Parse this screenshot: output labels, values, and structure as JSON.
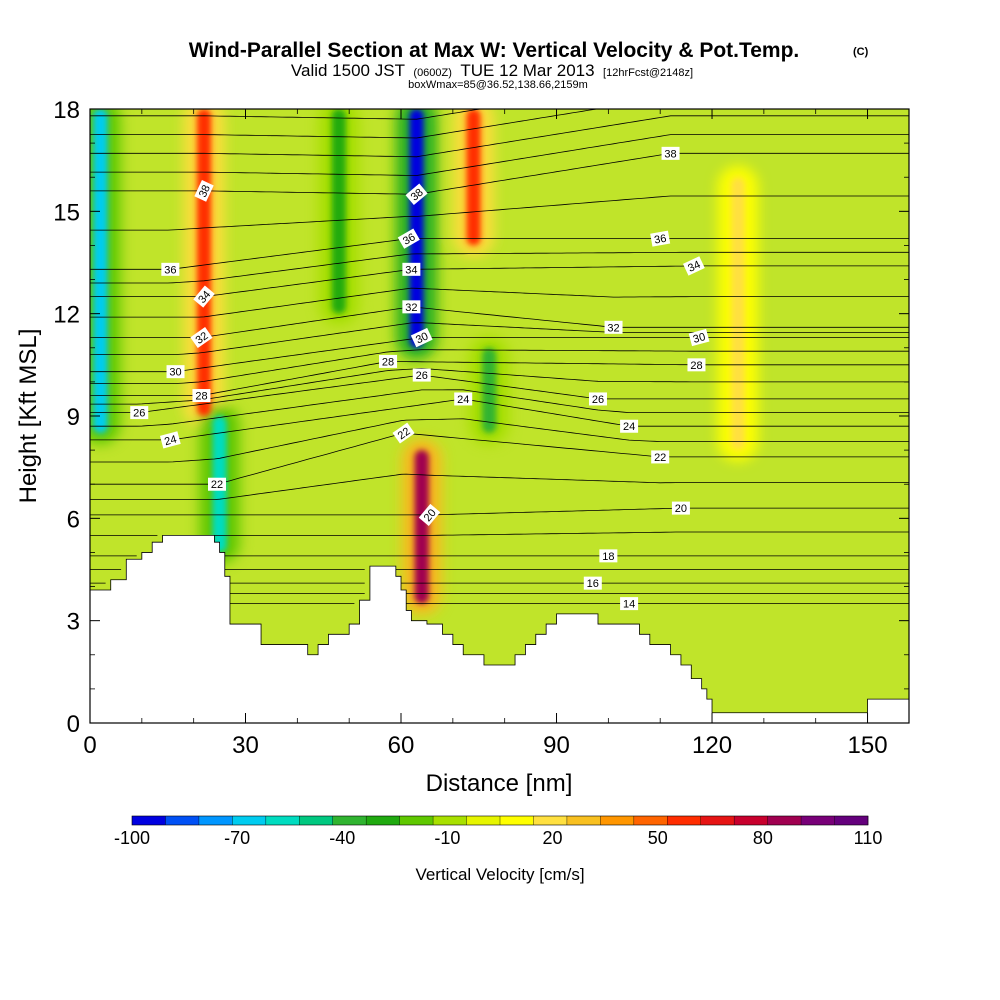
{
  "title": {
    "main": "Wind-Parallel Section at Max W: Vertical Velocity & Pot.Temp.",
    "copyright": "(C)",
    "valid_prefix": "Valid 1500 JST",
    "valid_utc": "(0600Z)",
    "valid_date": "TUE 12 Mar 2013",
    "forecast": "[12hrFcst@2148z]",
    "box_info": "boxWmax=85@36.52,138.66,2159m"
  },
  "chart_data": {
    "type": "heatmap",
    "xlabel": "Distance [nm]",
    "ylabel": "Height [Kft MSL]",
    "xlim": [
      0,
      158
    ],
    "ylim": [
      0,
      18
    ],
    "x_ticks": [
      0,
      30,
      60,
      90,
      120,
      150
    ],
    "y_ticks": [
      0,
      3,
      6,
      9,
      12,
      15,
      18
    ],
    "grid": false,
    "colorbar": {
      "label": "Vertical Velocity [cm/s]",
      "placement": "bottom",
      "tick_labels": [
        "-100",
        "-70",
        "-40",
        "-10",
        "20",
        "50",
        "80",
        "110"
      ],
      "tick_values": [
        -100,
        -70,
        -40,
        -10,
        20,
        50,
        80,
        110
      ],
      "colors": [
        "#0000e0",
        "#0050f5",
        "#0096ff",
        "#00ccf0",
        "#00dcc0",
        "#00c880",
        "#30b430",
        "#20aa10",
        "#5fc800",
        "#a8e000",
        "#e6f500",
        "#ffff00",
        "#ffe040",
        "#f8c020",
        "#ff9600",
        "#ff6400",
        "#ff2d00",
        "#e61414",
        "#c8002d",
        "#a00050",
        "#780078",
        "#64007c"
      ]
    },
    "terrain_profile": {
      "x": [
        0,
        1,
        4,
        7,
        10,
        12,
        14,
        16,
        19,
        24,
        25,
        26,
        27,
        28,
        30,
        33,
        36,
        38,
        42,
        44,
        46,
        48,
        50,
        52,
        54,
        55,
        56,
        58,
        59,
        60,
        61,
        62,
        63,
        64,
        65,
        66,
        68,
        70,
        72,
        74,
        76,
        78,
        80,
        82,
        84,
        86,
        88,
        90,
        92,
        94,
        96,
        98,
        100,
        102,
        104,
        106,
        108,
        110,
        112,
        114,
        116,
        118,
        119,
        120,
        121,
        122,
        124,
        130,
        140,
        150,
        158
      ],
      "height": [
        3.9,
        3.9,
        4.2,
        4.8,
        5.0,
        5.3,
        5.5,
        5.5,
        5.5,
        5.3,
        5.0,
        4.3,
        2.9,
        2.9,
        2.9,
        2.3,
        2.3,
        2.3,
        2.0,
        2.3,
        2.6,
        2.6,
        2.9,
        3.6,
        4.6,
        4.6,
        4.6,
        4.6,
        4.3,
        3.9,
        3.3,
        3.0,
        3.0,
        3.0,
        2.9,
        2.9,
        2.6,
        2.3,
        2.0,
        2.0,
        1.7,
        1.7,
        1.7,
        2.0,
        2.3,
        2.6,
        2.9,
        3.2,
        3.2,
        3.2,
        3.2,
        2.9,
        2.9,
        2.9,
        2.9,
        2.6,
        2.3,
        2.3,
        2.0,
        1.7,
        1.3,
        1.0,
        0.7,
        0.3,
        0.3,
        0.3,
        0.3,
        0.3,
        0.3,
        0.7,
        0.7
      ]
    },
    "vertical_velocity_features": [
      {
        "x": 2,
        "y_from": 8.5,
        "y_to": 18,
        "w": -70
      },
      {
        "x": 22,
        "y_from": 9,
        "y_to": 18,
        "w": 60
      },
      {
        "x": 25,
        "y_from": 5,
        "y_to": 9,
        "w": -55
      },
      {
        "x": 48,
        "y_from": 12,
        "y_to": 18,
        "w": -30
      },
      {
        "x": 63,
        "y_from": 11,
        "y_to": 18,
        "w": -100
      },
      {
        "x": 64,
        "y_from": 3.5,
        "y_to": 8,
        "w": 85
      },
      {
        "x": 74,
        "y_from": 14,
        "y_to": 18,
        "w": 55
      },
      {
        "x": 77,
        "y_from": 8.5,
        "y_to": 11,
        "w": -35
      },
      {
        "x": 125,
        "y_from": 8,
        "y_to": 16,
        "w": 20
      }
    ],
    "potential_temperature_labels": [
      {
        "x": 22,
        "y": 15.6,
        "text": "38",
        "angle": -65
      },
      {
        "x": 15.5,
        "y": 13.3,
        "text": "36",
        "angle": 0
      },
      {
        "x": 22,
        "y": 12.5,
        "text": "34",
        "angle": -50
      },
      {
        "x": 21.5,
        "y": 11.3,
        "text": "32",
        "angle": -35
      },
      {
        "x": 16.5,
        "y": 10.3,
        "text": "30",
        "angle": 0
      },
      {
        "x": 21.5,
        "y": 9.6,
        "text": "28",
        "angle": 0
      },
      {
        "x": 9.5,
        "y": 9.1,
        "text": "26",
        "angle": 0
      },
      {
        "x": 15.5,
        "y": 8.3,
        "text": "24",
        "angle": -15
      },
      {
        "x": 24.5,
        "y": 7.0,
        "text": "22",
        "angle": 0
      },
      {
        "x": 63,
        "y": 15.5,
        "text": "38",
        "angle": -40
      },
      {
        "x": 61.5,
        "y": 14.2,
        "text": "36",
        "angle": -30
      },
      {
        "x": 62,
        "y": 13.3,
        "text": "34",
        "angle": 0
      },
      {
        "x": 62,
        "y": 12.2,
        "text": "32",
        "angle": 0
      },
      {
        "x": 64,
        "y": 11.3,
        "text": "30",
        "angle": -25
      },
      {
        "x": 57.5,
        "y": 10.6,
        "text": "28",
        "angle": 0
      },
      {
        "x": 64,
        "y": 10.2,
        "text": "26",
        "angle": 0
      },
      {
        "x": 72,
        "y": 9.5,
        "text": "24",
        "angle": 0
      },
      {
        "x": 60.5,
        "y": 8.5,
        "text": "22",
        "angle": -35
      },
      {
        "x": 65.5,
        "y": 6.1,
        "text": "20",
        "angle": -50
      },
      {
        "x": 112,
        "y": 16.7,
        "text": "38",
        "angle": 0
      },
      {
        "x": 110,
        "y": 14.2,
        "text": "36",
        "angle": -10
      },
      {
        "x": 116.5,
        "y": 13.4,
        "text": "34",
        "angle": -25
      },
      {
        "x": 101,
        "y": 11.6,
        "text": "32",
        "angle": 0
      },
      {
        "x": 117.5,
        "y": 11.3,
        "text": "30",
        "angle": -15
      },
      {
        "x": 117,
        "y": 10.5,
        "text": "28",
        "angle": 0
      },
      {
        "x": 98,
        "y": 9.5,
        "text": "26",
        "angle": 0
      },
      {
        "x": 104,
        "y": 8.7,
        "text": "24",
        "angle": 0
      },
      {
        "x": 110,
        "y": 7.8,
        "text": "22",
        "angle": 0
      },
      {
        "x": 114,
        "y": 6.3,
        "text": "20",
        "angle": 0
      },
      {
        "x": 100,
        "y": 4.9,
        "text": "18",
        "angle": 0
      },
      {
        "x": 97,
        "y": 4.1,
        "text": "16",
        "angle": 0
      },
      {
        "x": 104,
        "y": 3.5,
        "text": "14",
        "angle": 0
      }
    ]
  }
}
